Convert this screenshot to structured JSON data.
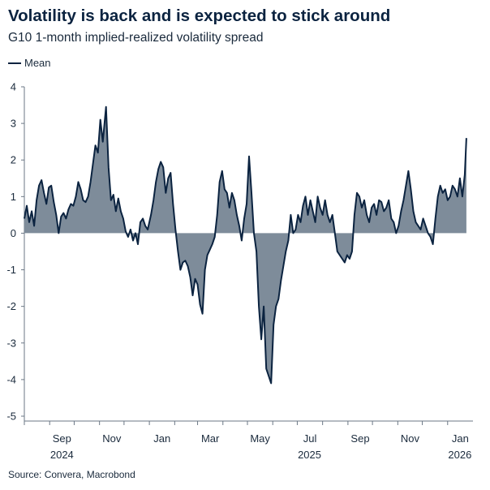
{
  "chart_data": {
    "type": "area",
    "title": "Volatility is back and is expected to stick around",
    "subtitle": "G10 1-month implied-realized volatility spread",
    "legend": {
      "position": "top-left",
      "entries": [
        "Mean"
      ]
    },
    "source": "Source: Convera, Macrobond",
    "y_ticks": [
      "4",
      "3",
      "2",
      "1",
      "0",
      "-1",
      "-2",
      "-3",
      "-4",
      "-5"
    ],
    "ylim": [
      -5,
      4
    ],
    "x_ticks": [
      "Sep",
      "Nov",
      "Jan",
      "Mar",
      "May",
      "Jul",
      "Sep",
      "Nov",
      "Jan"
    ],
    "year_labels": [
      "2024",
      "2025",
      "2026"
    ],
    "grid": false,
    "colors": {
      "line": "#0b2340",
      "fill": "#7e8c9a"
    },
    "series": [
      {
        "name": "Mean",
        "points": [
          [
            "2024-08-01",
            0.4
          ],
          [
            "2024-08-04",
            0.75
          ],
          [
            "2024-08-07",
            0.3
          ],
          [
            "2024-08-10",
            0.6
          ],
          [
            "2024-08-13",
            0.2
          ],
          [
            "2024-08-16",
            0.9
          ],
          [
            "2024-08-19",
            1.3
          ],
          [
            "2024-08-22",
            1.45
          ],
          [
            "2024-08-25",
            1.1
          ],
          [
            "2024-08-28",
            0.8
          ],
          [
            "2024-08-31",
            1.25
          ],
          [
            "2024-09-03",
            1.3
          ],
          [
            "2024-09-06",
            0.85
          ],
          [
            "2024-09-09",
            0.5
          ],
          [
            "2024-09-12",
            0.0
          ],
          [
            "2024-09-15",
            0.45
          ],
          [
            "2024-09-18",
            0.55
          ],
          [
            "2024-09-21",
            0.4
          ],
          [
            "2024-09-24",
            0.65
          ],
          [
            "2024-09-27",
            0.8
          ],
          [
            "2024-09-30",
            0.75
          ],
          [
            "2024-10-03",
            1.0
          ],
          [
            "2024-10-06",
            1.4
          ],
          [
            "2024-10-09",
            1.2
          ],
          [
            "2024-10-12",
            0.9
          ],
          [
            "2024-10-15",
            0.85
          ],
          [
            "2024-10-18",
            1.0
          ],
          [
            "2024-10-21",
            1.4
          ],
          [
            "2024-10-24",
            1.9
          ],
          [
            "2024-10-27",
            2.4
          ],
          [
            "2024-10-30",
            2.2
          ],
          [
            "2024-11-02",
            3.1
          ],
          [
            "2024-11-05",
            2.5
          ],
          [
            "2024-11-09",
            3.45
          ],
          [
            "2024-11-12",
            1.8
          ],
          [
            "2024-11-15",
            0.9
          ],
          [
            "2024-11-18",
            1.05
          ],
          [
            "2024-11-21",
            0.6
          ],
          [
            "2024-11-24",
            0.95
          ],
          [
            "2024-11-27",
            0.6
          ],
          [
            "2024-11-30",
            0.4
          ],
          [
            "2024-12-03",
            0.05
          ],
          [
            "2024-12-06",
            -0.1
          ],
          [
            "2024-12-09",
            0.1
          ],
          [
            "2024-12-12",
            -0.2
          ],
          [
            "2024-12-15",
            0.0
          ],
          [
            "2024-12-18",
            -0.3
          ],
          [
            "2024-12-21",
            0.3
          ],
          [
            "2024-12-24",
            0.4
          ],
          [
            "2024-12-27",
            0.2
          ],
          [
            "2024-12-30",
            0.1
          ],
          [
            "2025-01-03",
            0.5
          ],
          [
            "2025-01-06",
            0.9
          ],
          [
            "2025-01-09",
            1.4
          ],
          [
            "2025-01-12",
            1.75
          ],
          [
            "2025-01-15",
            1.95
          ],
          [
            "2025-01-18",
            1.8
          ],
          [
            "2025-01-21",
            1.1
          ],
          [
            "2025-01-24",
            1.5
          ],
          [
            "2025-01-27",
            1.65
          ],
          [
            "2025-01-30",
            0.8
          ],
          [
            "2025-02-02",
            0.1
          ],
          [
            "2025-02-05",
            -0.5
          ],
          [
            "2025-02-08",
            -1.0
          ],
          [
            "2025-02-11",
            -0.8
          ],
          [
            "2025-02-14",
            -0.75
          ],
          [
            "2025-02-17",
            -0.9
          ],
          [
            "2025-02-20",
            -1.2
          ],
          [
            "2025-02-23",
            -1.7
          ],
          [
            "2025-02-26",
            -1.25
          ],
          [
            "2025-03-01",
            -1.4
          ],
          [
            "2025-03-04",
            -1.95
          ],
          [
            "2025-03-07",
            -2.2
          ],
          [
            "2025-03-10",
            -1.0
          ],
          [
            "2025-03-13",
            -0.6
          ],
          [
            "2025-03-16",
            -0.45
          ],
          [
            "2025-03-19",
            -0.3
          ],
          [
            "2025-03-22",
            -0.1
          ],
          [
            "2025-03-25",
            0.5
          ],
          [
            "2025-03-28",
            1.4
          ],
          [
            "2025-03-31",
            1.7
          ],
          [
            "2025-04-03",
            1.2
          ],
          [
            "2025-04-06",
            1.1
          ],
          [
            "2025-04-09",
            0.7
          ],
          [
            "2025-04-12",
            1.1
          ],
          [
            "2025-04-15",
            0.9
          ],
          [
            "2025-04-18",
            0.5
          ],
          [
            "2025-04-21",
            0.2
          ],
          [
            "2025-04-24",
            -0.2
          ],
          [
            "2025-04-27",
            0.4
          ],
          [
            "2025-04-30",
            0.8
          ],
          [
            "2025-05-03",
            2.1
          ],
          [
            "2025-05-06",
            1.1
          ],
          [
            "2025-05-09",
            0.0
          ],
          [
            "2025-05-12",
            -0.5
          ],
          [
            "2025-05-15",
            -2.0
          ],
          [
            "2025-05-18",
            -2.9
          ],
          [
            "2025-05-21",
            -2.0
          ],
          [
            "2025-05-24",
            -3.7
          ],
          [
            "2025-05-27",
            -3.9
          ],
          [
            "2025-05-30",
            -4.1
          ],
          [
            "2025-06-02",
            -2.5
          ],
          [
            "2025-06-05",
            -2.0
          ],
          [
            "2025-06-08",
            -1.8
          ],
          [
            "2025-06-11",
            -1.3
          ],
          [
            "2025-06-14",
            -0.9
          ],
          [
            "2025-06-17",
            -0.5
          ],
          [
            "2025-06-20",
            -0.2
          ],
          [
            "2025-06-23",
            0.5
          ],
          [
            "2025-06-26",
            0.0
          ],
          [
            "2025-06-29",
            0.1
          ],
          [
            "2025-07-02",
            0.5
          ],
          [
            "2025-07-05",
            0.3
          ],
          [
            "2025-07-08",
            0.75
          ],
          [
            "2025-07-11",
            1.0
          ],
          [
            "2025-07-14",
            0.5
          ],
          [
            "2025-07-17",
            0.9
          ],
          [
            "2025-07-20",
            0.6
          ],
          [
            "2025-07-23",
            0.3
          ],
          [
            "2025-07-26",
            1.0
          ],
          [
            "2025-07-29",
            0.7
          ],
          [
            "2025-08-01",
            0.5
          ],
          [
            "2025-08-04",
            0.9
          ],
          [
            "2025-08-07",
            0.5
          ],
          [
            "2025-08-10",
            0.3
          ],
          [
            "2025-08-13",
            0.5
          ],
          [
            "2025-08-16",
            0.0
          ],
          [
            "2025-08-19",
            -0.5
          ],
          [
            "2025-08-22",
            -0.6
          ],
          [
            "2025-08-25",
            -0.7
          ],
          [
            "2025-08-28",
            -0.8
          ],
          [
            "2025-08-31",
            -0.6
          ],
          [
            "2025-09-03",
            -0.7
          ],
          [
            "2025-09-06",
            -0.5
          ],
          [
            "2025-09-09",
            0.5
          ],
          [
            "2025-09-12",
            1.1
          ],
          [
            "2025-09-15",
            1.0
          ],
          [
            "2025-09-18",
            0.7
          ],
          [
            "2025-09-21",
            0.9
          ],
          [
            "2025-09-24",
            0.5
          ],
          [
            "2025-09-27",
            0.3
          ],
          [
            "2025-09-30",
            0.7
          ],
          [
            "2025-10-03",
            0.8
          ],
          [
            "2025-10-06",
            0.5
          ],
          [
            "2025-10-09",
            0.9
          ],
          [
            "2025-10-12",
            0.85
          ],
          [
            "2025-10-15",
            0.6
          ],
          [
            "2025-10-18",
            0.7
          ],
          [
            "2025-10-21",
            0.9
          ],
          [
            "2025-10-24",
            0.4
          ],
          [
            "2025-10-27",
            0.3
          ],
          [
            "2025-10-30",
            0.0
          ],
          [
            "2025-11-02",
            0.2
          ],
          [
            "2025-11-05",
            0.6
          ],
          [
            "2025-11-08",
            0.9
          ],
          [
            "2025-11-11",
            1.3
          ],
          [
            "2025-11-14",
            1.7
          ],
          [
            "2025-11-17",
            1.2
          ],
          [
            "2025-11-20",
            0.6
          ],
          [
            "2025-11-23",
            0.3
          ],
          [
            "2025-11-26",
            0.2
          ],
          [
            "2025-11-29",
            0.1
          ],
          [
            "2025-12-02",
            0.4
          ],
          [
            "2025-12-05",
            0.2
          ],
          [
            "2025-12-08",
            0.0
          ],
          [
            "2025-12-11",
            -0.1
          ],
          [
            "2025-12-14",
            -0.3
          ],
          [
            "2025-12-17",
            0.4
          ],
          [
            "2025-12-20",
            1.0
          ],
          [
            "2025-12-23",
            1.3
          ],
          [
            "2025-12-26",
            1.1
          ],
          [
            "2025-12-29",
            1.2
          ],
          [
            "2026-01-01",
            0.9
          ],
          [
            "2026-01-04",
            1.0
          ],
          [
            "2026-01-07",
            1.3
          ],
          [
            "2026-01-10",
            1.2
          ],
          [
            "2026-01-13",
            1.0
          ],
          [
            "2026-01-16",
            1.5
          ],
          [
            "2026-01-19",
            1.0
          ],
          [
            "2026-01-22",
            1.6
          ],
          [
            "2026-01-24",
            2.6
          ]
        ]
      }
    ]
  }
}
